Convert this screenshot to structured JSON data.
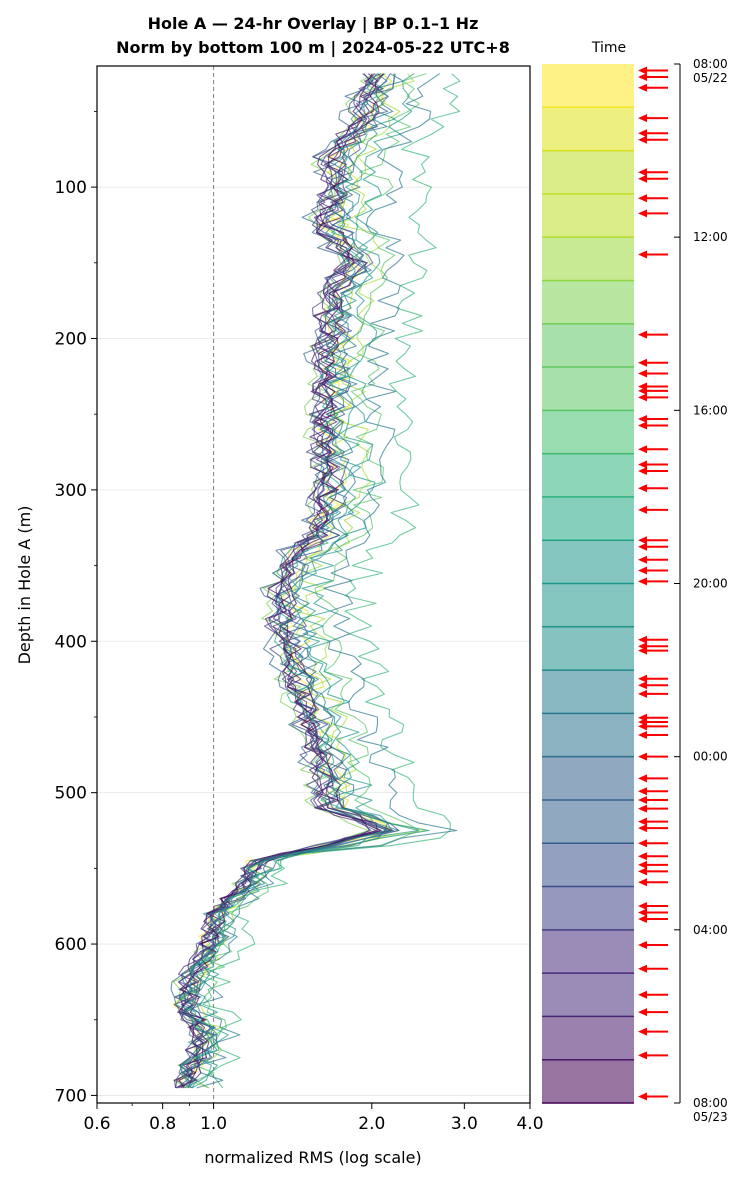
{
  "chart_data": {
    "type": "line",
    "title_line1": "Hole A — 24-hr Overlay  |  BP 0.1–1 Hz",
    "title_line2": "Norm by bottom 100 m  |  2024-05-22 UTC+8",
    "xlabel": "normalized RMS  (log scale)",
    "ylabel": "Depth in Hole A (m)",
    "xscale": "log",
    "xlim": [
      0.6,
      4.0
    ],
    "ylim": [
      705,
      20
    ],
    "y_inverted": true,
    "x_ticks": [
      "0.6",
      "0.8",
      "1.0",
      "2.0",
      "3.0",
      "4.0"
    ],
    "x_tick_values": [
      0.6,
      0.8,
      1.0,
      2.0,
      3.0,
      4.0
    ],
    "y_ticks": [
      "100",
      "200",
      "300",
      "400",
      "500",
      "600",
      "700"
    ],
    "y_tick_values": [
      100,
      200,
      300,
      400,
      500,
      600,
      700
    ],
    "reference_line": {
      "x": 1.0,
      "style": "dashed",
      "color": "#808080"
    },
    "grid": "horizontal",
    "depth_step_m": 5,
    "depth_start_m": 25,
    "depth_end_m": 695,
    "base_profile": [
      {
        "depth": 25,
        "value": 2.0
      },
      {
        "depth": 60,
        "value": 1.85
      },
      {
        "depth": 80,
        "value": 1.65
      },
      {
        "depth": 100,
        "value": 1.68
      },
      {
        "depth": 125,
        "value": 1.6
      },
      {
        "depth": 150,
        "value": 1.8
      },
      {
        "depth": 170,
        "value": 1.65
      },
      {
        "depth": 200,
        "value": 1.63
      },
      {
        "depth": 250,
        "value": 1.6
      },
      {
        "depth": 300,
        "value": 1.62
      },
      {
        "depth": 330,
        "value": 1.55
      },
      {
        "depth": 345,
        "value": 1.38
      },
      {
        "depth": 370,
        "value": 1.32
      },
      {
        "depth": 400,
        "value": 1.35
      },
      {
        "depth": 430,
        "value": 1.42
      },
      {
        "depth": 460,
        "value": 1.52
      },
      {
        "depth": 490,
        "value": 1.6
      },
      {
        "depth": 510,
        "value": 1.62
      },
      {
        "depth": 525,
        "value": 2.1
      },
      {
        "depth": 535,
        "value": 1.6
      },
      {
        "depth": 545,
        "value": 1.2
      },
      {
        "depth": 560,
        "value": 1.15
      },
      {
        "depth": 580,
        "value": 1.0
      },
      {
        "depth": 600,
        "value": 0.98
      },
      {
        "depth": 620,
        "value": 0.9
      },
      {
        "depth": 640,
        "value": 0.88
      },
      {
        "depth": 660,
        "value": 0.95
      },
      {
        "depth": 680,
        "value": 0.9
      },
      {
        "depth": 695,
        "value": 0.88
      }
    ],
    "series_count": 24,
    "series_colors": [
      "#fde725",
      "#d2e21b",
      "#a5db36",
      "#7ad151",
      "#54c568",
      "#35b779",
      "#22a884",
      "#1f988b",
      "#23888e",
      "#2a788e",
      "#31688e",
      "#39568c",
      "#414487",
      "#472d7b",
      "#481a6c",
      "#440154",
      "#440154",
      "#481a6c",
      "#472d7b",
      "#414487",
      "#39568c",
      "#2a788e",
      "#1f988b",
      "#22a884"
    ],
    "series_offsets": [
      0.03,
      0.08,
      0.15,
      -0.02,
      0.22,
      0.45,
      0.02,
      0.12,
      0.05,
      0.3,
      -0.03,
      0.07,
      0.01,
      0.0,
      -0.01,
      0.04,
      0.02,
      0.0,
      0.03,
      -0.02,
      0.06,
      0.1,
      0.18,
      0.05
    ],
    "series_noise": [
      0.06,
      0.06,
      0.07,
      0.06,
      0.07,
      0.08,
      0.06,
      0.06,
      0.06,
      0.07,
      0.06,
      0.06,
      0.05,
      0.05,
      0.05,
      0.05,
      0.05,
      0.05,
      0.05,
      0.05,
      0.06,
      0.06,
      0.07,
      0.06
    ],
    "colorbar": {
      "title": "Time",
      "cmap": "viridis_r",
      "n_bins": 24,
      "tick_labels": [
        "08:00\n05/22",
        "12:00",
        "16:00",
        "20:00",
        "00:00",
        "04:00",
        "08:00\n05/23"
      ],
      "tick_hours": [
        0,
        4,
        8,
        12,
        16,
        20,
        24
      ]
    },
    "event_markers": {
      "color": "#ff0000",
      "hours": [
        0.15,
        0.3,
        0.55,
        1.25,
        1.6,
        1.75,
        2.5,
        2.65,
        3.1,
        3.45,
        4.4,
        6.25,
        6.9,
        7.15,
        7.45,
        7.55,
        7.7,
        8.2,
        8.35,
        8.9,
        9.25,
        9.4,
        9.8,
        10.3,
        11.0,
        11.15,
        11.45,
        11.7,
        11.95,
        13.3,
        13.45,
        13.55,
        14.2,
        14.35,
        14.55,
        15.1,
        15.2,
        15.3,
        15.5,
        16.0,
        16.5,
        16.8,
        17.0,
        17.2,
        17.5,
        17.65,
        18.0,
        18.3,
        18.5,
        18.65,
        18.9,
        19.45,
        19.6,
        19.75,
        20.35,
        20.9,
        21.5,
        21.9,
        22.35,
        22.9,
        23.85
      ]
    }
  }
}
